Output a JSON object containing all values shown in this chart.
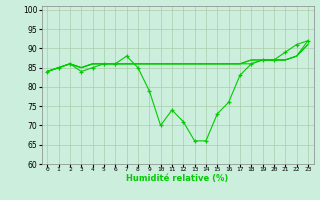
{
  "xlabel": "Humidité relative (%)",
  "background_color": "#cceedd",
  "grid_color": "#aaccaa",
  "line_color": "#00cc00",
  "x": [
    0,
    1,
    2,
    3,
    4,
    5,
    6,
    7,
    8,
    9,
    10,
    11,
    12,
    13,
    14,
    15,
    16,
    17,
    18,
    19,
    20,
    21,
    22,
    23
  ],
  "ylim": [
    60,
    101
  ],
  "yticks": [
    60,
    65,
    70,
    75,
    80,
    85,
    90,
    95,
    100
  ],
  "series": [
    [
      84,
      85,
      86,
      84,
      85,
      86,
      86,
      88,
      85,
      79,
      70,
      74,
      71,
      66,
      66,
      73,
      76,
      83,
      86,
      87,
      87,
      89,
      91,
      92
    ],
    [
      84,
      85,
      86,
      85,
      86,
      86,
      86,
      86,
      86,
      86,
      86,
      86,
      86,
      86,
      86,
      86,
      86,
      86,
      86,
      87,
      87,
      87,
      88,
      91
    ],
    [
      84,
      85,
      86,
      85,
      86,
      86,
      86,
      86,
      86,
      86,
      86,
      86,
      86,
      86,
      86,
      86,
      86,
      86,
      87,
      87,
      87,
      87,
      88,
      91
    ],
    [
      84,
      85,
      86,
      85,
      86,
      86,
      86,
      86,
      86,
      86,
      86,
      86,
      86,
      86,
      86,
      86,
      86,
      86,
      87,
      87,
      87,
      87,
      88,
      92
    ]
  ],
  "markers": [
    true,
    false,
    false,
    false
  ]
}
